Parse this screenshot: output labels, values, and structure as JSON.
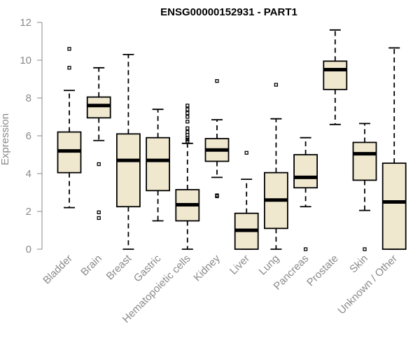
{
  "chart_data": {
    "type": "boxplot",
    "title": "ENSG00000152931 - PART1",
    "xlabel": "",
    "ylabel": "Expression",
    "ylim": [
      0,
      12
    ],
    "yticks": [
      0,
      2,
      4,
      6,
      8,
      10,
      12
    ],
    "box_color": "#efe8cf",
    "categories": [
      "Bladder",
      "Brain",
      "Breast",
      "Gastric",
      "Hematopoietic cells",
      "Kidney",
      "Liver",
      "Lung",
      "Pancreas",
      "Prostate",
      "Skin",
      "Unknown / Other"
    ],
    "boxes": [
      {
        "name": "Bladder",
        "min": 2.2,
        "q1": 4.05,
        "median": 5.2,
        "q3": 6.2,
        "max": 8.4,
        "outliers": [
          9.6,
          10.6
        ]
      },
      {
        "name": "Brain",
        "min": 5.75,
        "q1": 6.95,
        "median": 7.6,
        "q3": 8.05,
        "max": 9.6,
        "outliers": [
          4.5,
          1.95,
          1.65
        ]
      },
      {
        "name": "Breast",
        "min": 0.0,
        "q1": 2.25,
        "median": 4.7,
        "q3": 6.1,
        "max": 10.3,
        "outliers": []
      },
      {
        "name": "Gastric",
        "min": 1.5,
        "q1": 3.1,
        "median": 4.7,
        "q3": 5.9,
        "max": 7.4,
        "outliers": []
      },
      {
        "name": "Hematopoietic cells",
        "min": 0.0,
        "q1": 1.5,
        "median": 2.35,
        "q3": 3.15,
        "max": 5.6,
        "outliers": [
          5.7,
          5.8,
          5.9,
          6.05,
          6.2,
          6.4,
          6.75,
          7.0,
          7.2,
          7.4,
          7.6
        ]
      },
      {
        "name": "Kidney",
        "min": 3.8,
        "q1": 4.65,
        "median": 5.25,
        "q3": 5.85,
        "max": 6.85,
        "outliers": [
          8.9,
          2.85,
          2.8
        ]
      },
      {
        "name": "Liver",
        "min": 0.0,
        "q1": 0.0,
        "median": 1.0,
        "q3": 1.9,
        "max": 3.7,
        "outliers": [
          5.1
        ]
      },
      {
        "name": "Lung",
        "min": 0.0,
        "q1": 1.1,
        "median": 2.6,
        "q3": 4.05,
        "max": 6.9,
        "outliers": [
          8.7
        ]
      },
      {
        "name": "Pancreas",
        "min": 2.25,
        "q1": 3.25,
        "median": 3.8,
        "q3": 5.0,
        "max": 5.9,
        "outliers": [
          0.0
        ]
      },
      {
        "name": "Prostate",
        "min": 6.6,
        "q1": 8.45,
        "median": 9.5,
        "q3": 9.95,
        "max": 11.6,
        "outliers": []
      },
      {
        "name": "Skin",
        "min": 2.05,
        "q1": 3.65,
        "median": 5.05,
        "q3": 5.65,
        "max": 6.65,
        "outliers": [
          0.0
        ]
      },
      {
        "name": "Unknown / Other",
        "min": 0.0,
        "q1": 0.0,
        "median": 2.5,
        "q3": 4.55,
        "max": 10.65,
        "outliers": []
      }
    ]
  }
}
